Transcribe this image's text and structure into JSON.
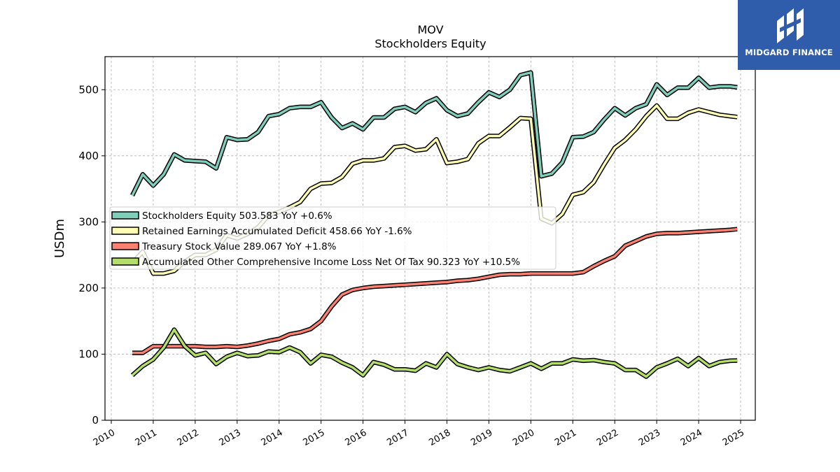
{
  "logo": {
    "text": "MIDGARD FINANCE",
    "background": "#2f5dab"
  },
  "chart_data": {
    "type": "line",
    "title": "MOV",
    "subtitle": "Stockholders  Equity",
    "xlabel": "",
    "ylabel": "USDm",
    "xlim": [
      2009.85,
      2025.35
    ],
    "ylim": [
      0,
      550
    ],
    "yticks": [
      0,
      100,
      200,
      300,
      400,
      500
    ],
    "xticks": [
      "2010",
      "2011",
      "2012",
      "2013",
      "2014",
      "2015",
      "2016",
      "2017",
      "2018",
      "2019",
      "2020",
      "2021",
      "2022",
      "2023",
      "2024",
      "2025"
    ],
    "grid": true,
    "legend_position": "center-left",
    "series": [
      {
        "name": "Stockholders Equity",
        "legend": "Stockholders Equity  503.583 YoY +0.6%",
        "color": "#7fcdbb",
        "x": [
          2010.5,
          2010.75,
          2011.0,
          2011.25,
          2011.5,
          2011.75,
          2012.0,
          2012.25,
          2012.5,
          2012.75,
          2013.0,
          2013.25,
          2013.5,
          2013.75,
          2014.0,
          2014.25,
          2014.5,
          2014.75,
          2015.0,
          2015.25,
          2015.5,
          2015.75,
          2016.0,
          2016.25,
          2016.5,
          2016.75,
          2017.0,
          2017.25,
          2017.5,
          2017.75,
          2018.0,
          2018.25,
          2018.5,
          2018.75,
          2019.0,
          2019.25,
          2019.5,
          2019.75,
          2020.0,
          2020.25,
          2020.5,
          2020.75,
          2021.0,
          2021.25,
          2021.5,
          2021.75,
          2022.0,
          2022.25,
          2022.5,
          2022.75,
          2023.0,
          2023.25,
          2023.5,
          2023.75,
          2024.0,
          2024.25,
          2024.5,
          2024.75,
          2024.92
        ],
        "y": [
          340,
          372,
          355,
          372,
          402,
          393,
          392,
          391,
          381,
          428,
          424,
          425,
          436,
          460,
          463,
          472,
          474,
          474,
          481,
          458,
          442,
          449,
          440,
          458,
          458,
          471,
          474,
          466,
          480,
          487,
          469,
          460,
          464,
          481,
          496,
          489,
          500,
          522,
          526,
          369,
          373,
          390,
          428,
          429,
          436,
          455,
          472,
          461,
          472,
          478,
          508,
          492,
          503,
          503,
          518,
          503,
          505,
          505,
          503.583
        ]
      },
      {
        "name": "Retained Earnings Accumulated Deficit",
        "legend": "Retained Earnings Accumulated Deficit  458.66 YoY -1.6%",
        "color": "#ffffb3",
        "x": [
          2010.5,
          2010.75,
          2011.0,
          2011.25,
          2011.5,
          2011.75,
          2012.0,
          2012.25,
          2012.5,
          2012.75,
          2013.0,
          2013.25,
          2013.5,
          2013.75,
          2014.0,
          2014.25,
          2014.5,
          2014.75,
          2015.0,
          2015.25,
          2015.5,
          2015.75,
          2016.0,
          2016.25,
          2016.5,
          2016.75,
          2017.0,
          2017.25,
          2017.5,
          2017.75,
          2018.0,
          2018.25,
          2018.5,
          2018.75,
          2019.0,
          2019.25,
          2019.5,
          2019.75,
          2020.0,
          2020.25,
          2020.5,
          2020.75,
          2021.0,
          2021.25,
          2021.5,
          2021.75,
          2022.0,
          2022.25,
          2022.5,
          2022.75,
          2023.0,
          2023.25,
          2023.5,
          2023.75,
          2024.0,
          2024.25,
          2024.5,
          2024.75,
          2024.92
        ],
        "y": [
          238,
          255,
          222,
          222,
          226,
          240,
          250,
          250,
          258,
          280,
          275,
          282,
          292,
          310,
          315,
          322,
          330,
          350,
          358,
          359,
          368,
          388,
          393,
          393,
          396,
          413,
          415,
          408,
          410,
          425,
          389,
          391,
          395,
          419,
          430,
          430,
          443,
          457,
          456,
          305,
          298,
          312,
          341,
          345,
          360,
          387,
          412,
          424,
          440,
          460,
          476,
          456,
          456,
          465,
          470,
          466,
          462,
          460,
          458.66
        ]
      },
      {
        "name": "Treasury Stock Value",
        "legend": "Treasury Stock Value  289.067 YoY +1.8%",
        "color": "#fb8072",
        "x": [
          2010.5,
          2010.75,
          2011.0,
          2011.25,
          2011.5,
          2011.75,
          2012.0,
          2012.25,
          2012.5,
          2012.75,
          2013.0,
          2013.25,
          2013.5,
          2013.75,
          2014.0,
          2014.25,
          2014.5,
          2014.75,
          2015.0,
          2015.25,
          2015.5,
          2015.75,
          2016.0,
          2016.25,
          2016.5,
          2016.75,
          2017.0,
          2017.25,
          2017.5,
          2017.75,
          2018.0,
          2018.25,
          2018.5,
          2018.75,
          2019.0,
          2019.25,
          2019.5,
          2019.75,
          2020.0,
          2020.25,
          2020.5,
          2020.75,
          2021.0,
          2021.25,
          2021.5,
          2021.75,
          2022.0,
          2022.25,
          2022.5,
          2022.75,
          2023.0,
          2023.25,
          2023.5,
          2023.75,
          2024.0,
          2024.25,
          2024.5,
          2024.75,
          2024.92
        ],
        "y": [
          102,
          102,
          112,
          112,
          112,
          112,
          112,
          111,
          111,
          112,
          111,
          113,
          116,
          120,
          123,
          130,
          133,
          138,
          150,
          172,
          190,
          197,
          200,
          202,
          203,
          204,
          205,
          206,
          207,
          208,
          209,
          211,
          212,
          214,
          217,
          220,
          221,
          221,
          222,
          222,
          222,
          222,
          222,
          224,
          233,
          241,
          248,
          264,
          271,
          278,
          282,
          283,
          283,
          284,
          285,
          286,
          287,
          288,
          289.067
        ]
      },
      {
        "name": "Accumulated Other Comprehensive Income Loss Net Of Tax",
        "legend": "Accumulated Other Comprehensive Income Loss Net Of Tax  90.323 YoY +10.5%",
        "color": "#b3de69",
        "x": [
          2010.5,
          2010.75,
          2011.0,
          2011.25,
          2011.5,
          2011.75,
          2012.0,
          2012.25,
          2012.5,
          2012.75,
          2013.0,
          2013.25,
          2013.5,
          2013.75,
          2014.0,
          2014.25,
          2014.5,
          2014.75,
          2015.0,
          2015.25,
          2015.5,
          2015.75,
          2016.0,
          2016.25,
          2016.5,
          2016.75,
          2017.0,
          2017.25,
          2017.5,
          2017.75,
          2018.0,
          2018.25,
          2018.5,
          2018.75,
          2019.0,
          2019.25,
          2019.5,
          2019.75,
          2020.0,
          2020.25,
          2020.5,
          2020.75,
          2021.0,
          2021.25,
          2021.5,
          2021.75,
          2022.0,
          2022.25,
          2022.5,
          2022.75,
          2023.0,
          2023.25,
          2023.5,
          2023.75,
          2024.0,
          2024.25,
          2024.5,
          2024.75,
          2024.92
        ],
        "y": [
          68,
          82,
          92,
          110,
          137,
          112,
          98,
          102,
          85,
          96,
          102,
          97,
          98,
          104,
          103,
          110,
          103,
          86,
          99,
          96,
          87,
          80,
          68,
          88,
          84,
          77,
          77,
          75,
          86,
          80,
          100,
          85,
          80,
          76,
          80,
          76,
          74,
          80,
          86,
          78,
          86,
          86,
          92,
          90,
          91,
          88,
          86,
          76,
          76,
          66,
          80,
          86,
          93,
          82,
          94,
          82,
          88,
          90,
          90.323
        ]
      }
    ]
  }
}
